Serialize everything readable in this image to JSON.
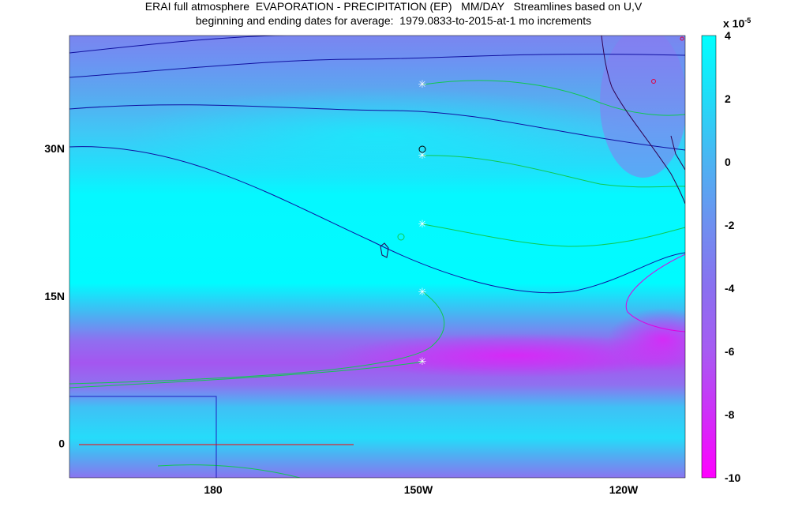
{
  "title_line1": "ERAI full atmosphere  EVAPORATION - PRECIPITATION (EP)   MM/DAY   Streamlines based on U,V",
  "title_line2": "beginning and ending dates for average:  1979.0833-to-2015-at-1 mo increments",
  "colorbar": {
    "multiplier_base": "x 10",
    "multiplier_exp": "-5",
    "tick_labels": [
      "4",
      "2",
      "0",
      "-2",
      "-4",
      "-6",
      "-8",
      "-10"
    ],
    "colors": {
      "top": "#00ffff",
      "mid": "#5aa8f0",
      "low": "#8f6ff0",
      "bottom": "#ff00ff"
    }
  },
  "chart_data": {
    "type": "heatmap",
    "x_tick_labels": [
      "180",
      "150W",
      "120W"
    ],
    "y_tick_labels": [
      "30N",
      "15N",
      "0"
    ],
    "x_tick_values": [
      180,
      210,
      240
    ],
    "y_tick_values": [
      30,
      15,
      0
    ],
    "x_range": [
      159,
      249
    ],
    "y_range": [
      -3.5,
      41.5
    ],
    "colorbar_range": [
      -10,
      4
    ],
    "colorbar_ticks": [
      4,
      2,
      0,
      -2,
      -4,
      -6,
      -8,
      -10
    ]
  }
}
